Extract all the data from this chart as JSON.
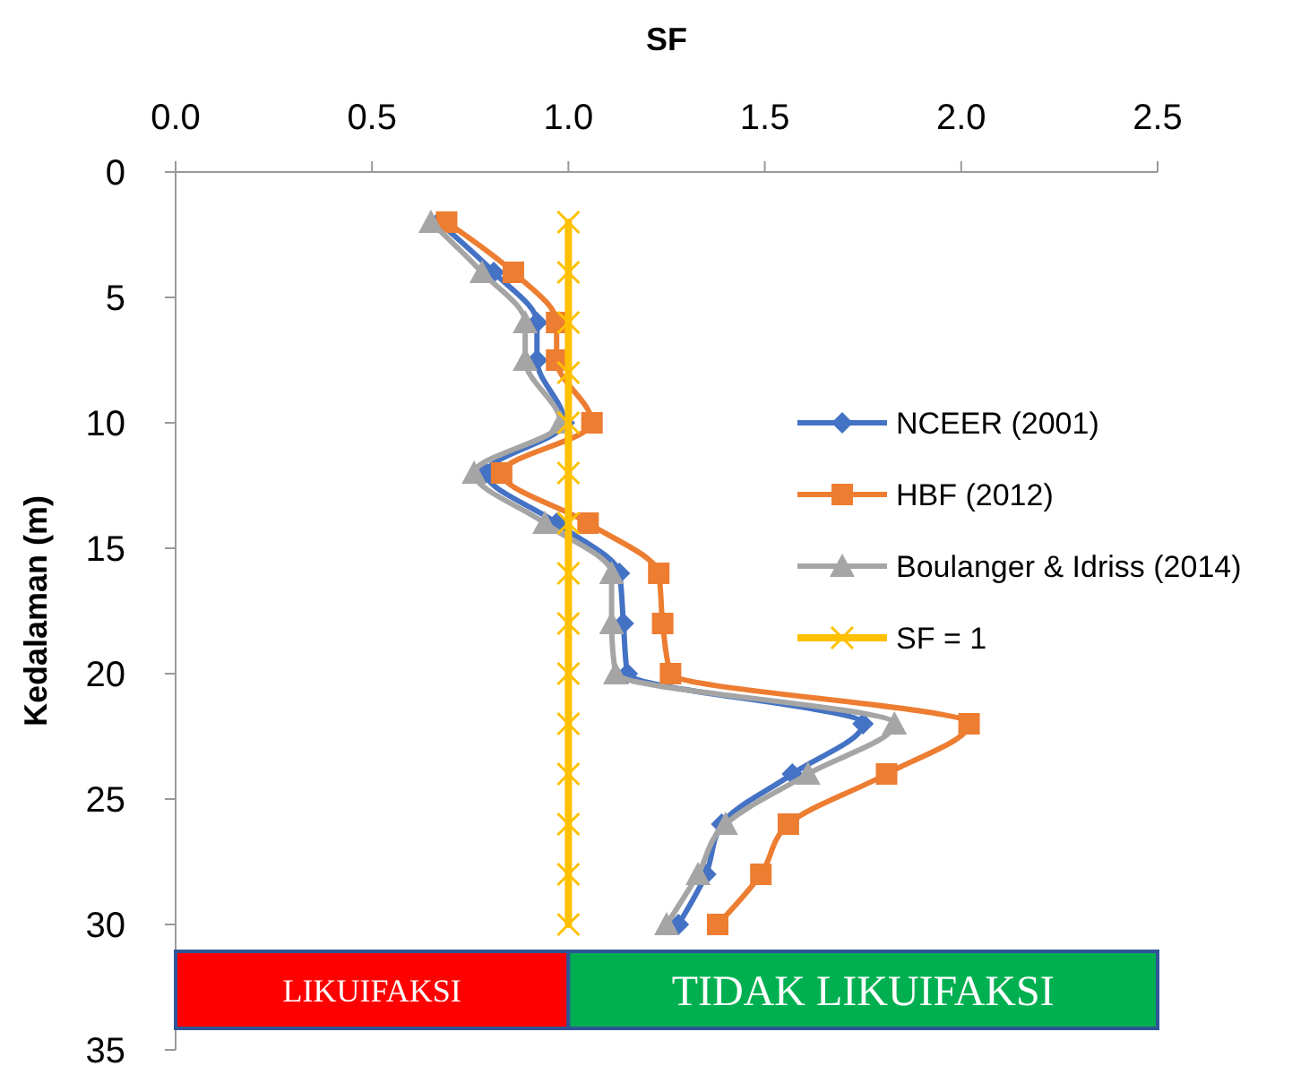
{
  "chart_data": {
    "type": "line",
    "xlabel": "SF",
    "ylabel": "Kedalaman (m)",
    "xlim": [
      0,
      2.5
    ],
    "xticks": [
      {
        "value": 0,
        "label": "0.0"
      },
      {
        "value": 0.5,
        "label": "0.5"
      },
      {
        "value": 1,
        "label": "1.0"
      },
      {
        "value": 1.5,
        "label": "1.5"
      },
      {
        "value": 2,
        "label": "2.0"
      },
      {
        "value": 2.5,
        "label": "2.5"
      }
    ],
    "ylim": [
      35,
      0
    ],
    "yticks": [
      0,
      5,
      10,
      15,
      20,
      25,
      30,
      35
    ],
    "grid": false,
    "legend": "right",
    "series": [
      {
        "name": "NCEER (2001)",
        "color": "#4472c4",
        "marker": "diamond",
        "x": [
          0.67,
          0.81,
          0.92,
          0.92,
          0.99,
          0.79,
          0.97,
          1.13,
          1.14,
          1.15,
          1.75,
          1.57,
          1.39,
          1.35,
          1.28
        ],
        "values": [
          2,
          4,
          6,
          7.5,
          10,
          12,
          14,
          16,
          18,
          20,
          22,
          24,
          26,
          28,
          30
        ]
      },
      {
        "name": "HBF (2012)",
        "color": "#ed7d31",
        "marker": "square",
        "x": [
          0.69,
          0.86,
          0.97,
          0.97,
          1.06,
          0.83,
          1.05,
          1.23,
          1.24,
          1.26,
          2.02,
          1.81,
          1.56,
          1.49,
          1.38
        ],
        "values": [
          2,
          4,
          6,
          7.5,
          10,
          12,
          14,
          16,
          18,
          20,
          22,
          24,
          26,
          28,
          30
        ]
      },
      {
        "name": "Boulanger & Idriss (2014)",
        "color": "#a5a5a5",
        "marker": "triangle",
        "x": [
          0.65,
          0.78,
          0.89,
          0.89,
          0.98,
          0.76,
          0.94,
          1.11,
          1.11,
          1.12,
          1.83,
          1.61,
          1.4,
          1.33,
          1.25
        ],
        "values": [
          2,
          4,
          6,
          7.5,
          10,
          12,
          14,
          16,
          18,
          20,
          22,
          24,
          26,
          28,
          30
        ]
      },
      {
        "name": "SF = 1",
        "color": "#ffc000",
        "marker": "cross",
        "x": [
          1,
          1,
          1,
          1,
          1,
          1,
          1,
          1,
          1,
          1,
          1,
          1,
          1,
          1,
          1
        ],
        "values": [
          2,
          4,
          6,
          8,
          10,
          12,
          14,
          16,
          18,
          20,
          22,
          24,
          26,
          28,
          30
        ]
      }
    ],
    "annotations": [
      "LIKUIFAKSI",
      "TIDAK LIKUIFAKSI"
    ]
  }
}
